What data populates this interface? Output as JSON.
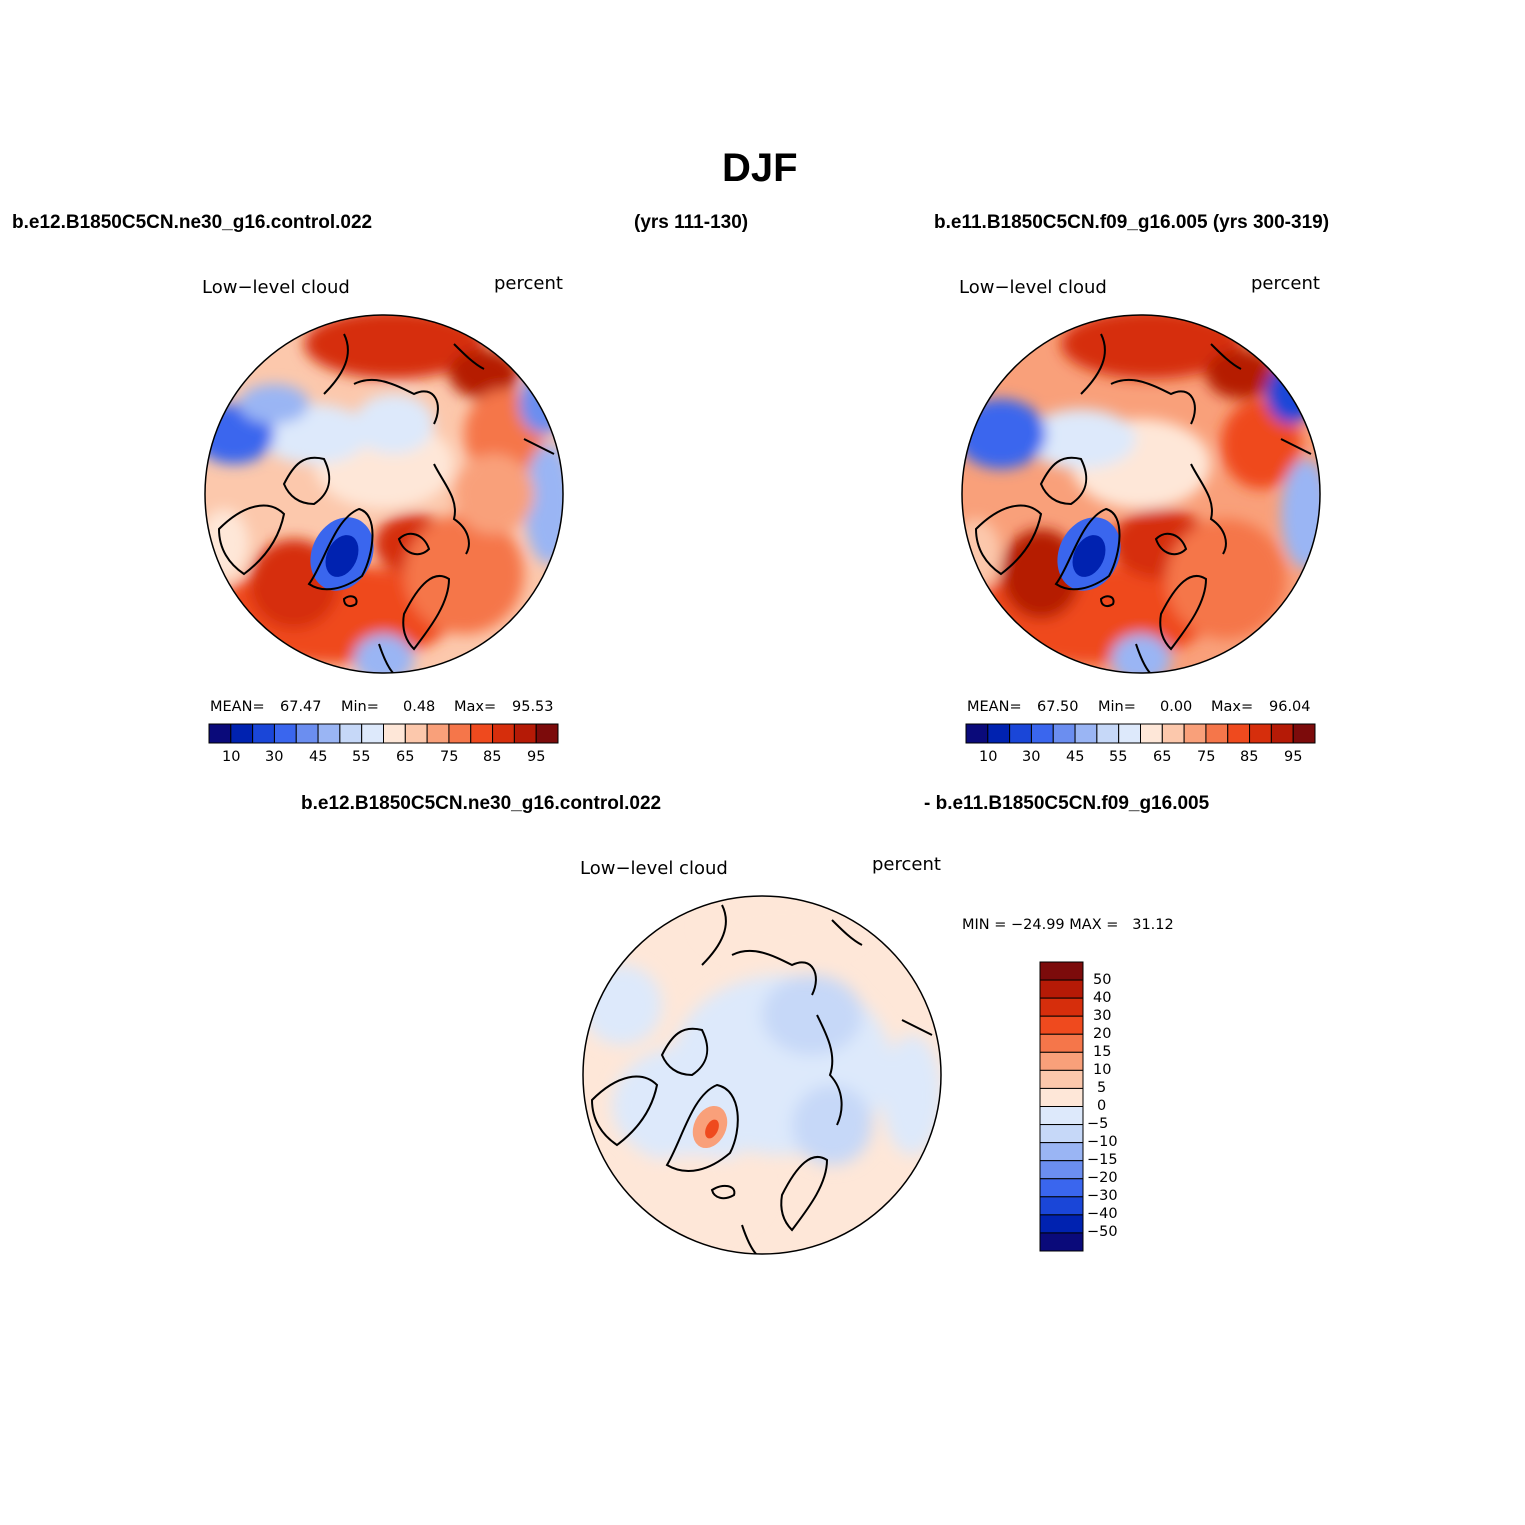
{
  "title": "DJF",
  "top_labels": {
    "left_run": "b.e12.B1850C5CN.ne30_g16.control.022",
    "left_years": "(yrs 111-130)",
    "right_run": "b.e11.B1850C5CN.f09_g16.005 (yrs 300-319)"
  },
  "diff_labels": {
    "left": "b.e12.B1850C5CN.ne30_g16.control.022",
    "right": "- b.e11.B1850C5CN.f09_g16.005"
  },
  "panels": {
    "left": {
      "variable": "Low−level cloud",
      "units": "percent",
      "mean_label": "MEAN=",
      "mean_value": "67.47",
      "min_label": "Min=",
      "min_value": "0.48",
      "max_label": "Max=",
      "max_value": "95.53"
    },
    "right": {
      "variable": "Low−level cloud",
      "units": "percent",
      "mean_label": "MEAN=",
      "mean_value": "67.50",
      "min_label": "Min=",
      "min_value": "0.00",
      "max_label": "Max=",
      "max_value": "96.04"
    },
    "diff": {
      "variable": "Low−level cloud",
      "units": "percent",
      "minmax_text": "MIN = −24.99 MAX =   31.12"
    }
  },
  "abs_colorbar": {
    "tick_labels": [
      "10",
      "30",
      "45",
      "55",
      "65",
      "75",
      "85",
      "95"
    ],
    "colors": [
      "#0a0a7a",
      "#0022b0",
      "#1a46d8",
      "#3a66ee",
      "#6b8ef0",
      "#9ab5f4",
      "#c6d8f8",
      "#dde9fb",
      "#fee7d8",
      "#fcc8ac",
      "#f9a07a",
      "#f5764a",
      "#ef4a1e",
      "#d62e0c",
      "#b51a06",
      "#7c0b0b"
    ]
  },
  "diff_colorbar": {
    "tick_labels": [
      "50",
      "40",
      "30",
      "20",
      "15",
      "10",
      "5",
      "0",
      "−5",
      "−10",
      "−15",
      "−20",
      "−30",
      "−40",
      "−50"
    ],
    "colors": [
      "#7c0b0b",
      "#b51a06",
      "#d62e0c",
      "#ef4a1e",
      "#f5764a",
      "#f9a07a",
      "#fcc8ac",
      "#fee7d8",
      "#dde9fb",
      "#c6d8f8",
      "#9ab5f4",
      "#6b8ef0",
      "#3a66ee",
      "#1a46d8",
      "#0022b0",
      "#0a0a7a"
    ]
  }
}
